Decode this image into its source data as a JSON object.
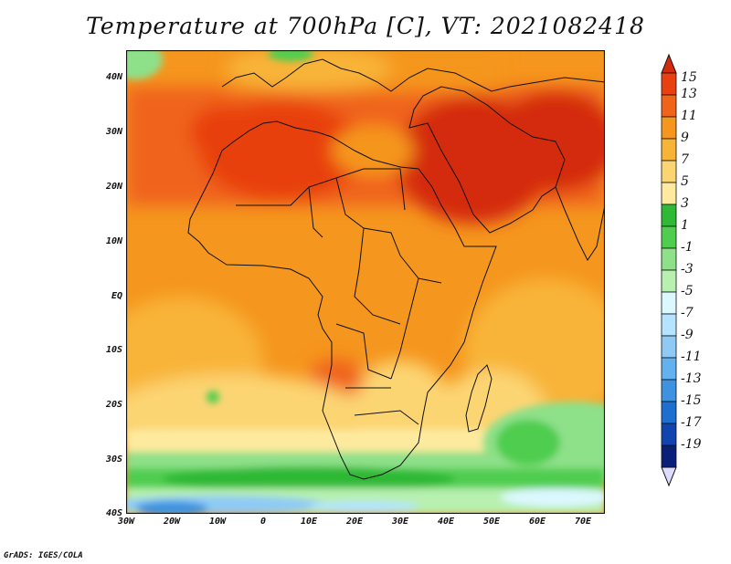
{
  "title": "Temperature at 700hPa [C], VT: 2021082418",
  "footer": "GrADS: IGES/COLA",
  "map": {
    "lat_labels": [
      "40N",
      "30N",
      "20N",
      "10N",
      "EQ",
      "10S",
      "20S",
      "30S",
      "40S"
    ],
    "lon_labels": [
      "30W",
      "20W",
      "10W",
      "0",
      "10E",
      "20E",
      "30E",
      "40E",
      "50E",
      "60E",
      "70E"
    ],
    "lat_range": [
      -40,
      45
    ],
    "lon_range": [
      -30,
      75
    ]
  },
  "colorbar": {
    "labels": [
      "15",
      "13",
      "11",
      "9",
      "7",
      "5",
      "3",
      "1",
      "-1",
      "-3",
      "-5",
      "-7",
      "-9",
      "-11",
      "-13",
      "-15",
      "-17",
      "-19"
    ],
    "colors": [
      "#e8400f",
      "#f0641a",
      "#f5961e",
      "#f8b437",
      "#fcd573",
      "#fdea9e",
      "#2fb935",
      "#4fcd4f",
      "#8ee089",
      "#b8f0b0",
      "#dcf8ff",
      "#b4e4ff",
      "#8fcaf5",
      "#63b1ee",
      "#3d93e0",
      "#1f6fd0",
      "#1045b0",
      "#0a1f78"
    ],
    "top_color": "#d42a0d",
    "bottom_color": "#dcdcff"
  }
}
